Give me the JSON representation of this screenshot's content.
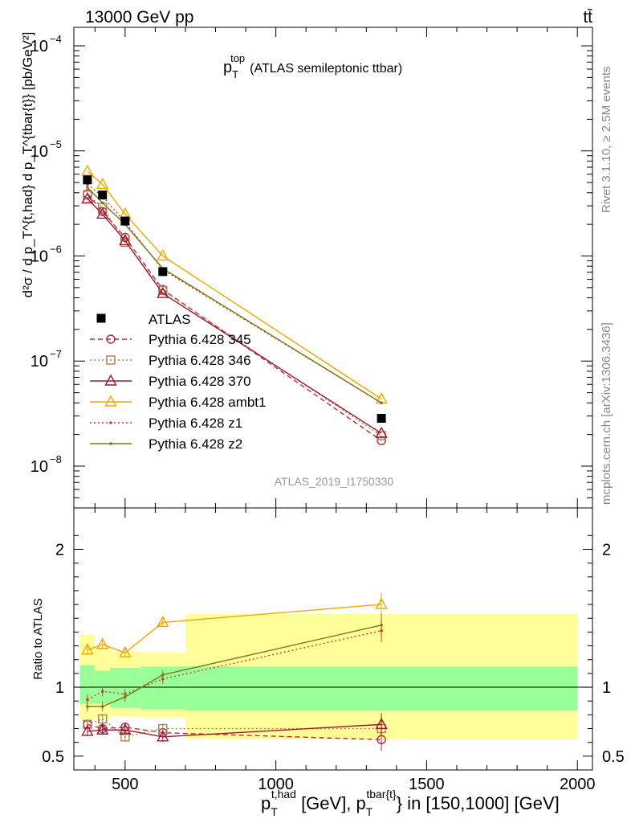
{
  "header": {
    "left": "13000 GeV pp",
    "right": "tt̄"
  },
  "side_labels": {
    "rivet": "Rivet 3.1.10, ≥ 2.5M events",
    "mcplots": "mcplots.cern.ch [arXiv:1306.3436]"
  },
  "plot_title": {
    "main": "p",
    "sub": "T",
    "sup": "top",
    "rest": "(ATLAS semileptonic ttbar)"
  },
  "analysis_id": "ATLAS_2019_I1750330",
  "ylabel_main": "d²σ / d p_T^{t,had} d p_T^{tbar{t}} [pb/GeV²]",
  "ylabel_ratio": "Ratio to ATLAS",
  "xlabel": "p_T^{t,had} [GeV], p_T^{tbar{t}} in [150,1000] [GeV]",
  "xlabel_parts": {
    "p1": "p",
    "sub1": "T",
    "sup1": "t,had",
    "mid": " [GeV], p",
    "sub2": "T",
    "sup2": "tbar{t}",
    "end": "} in [150,1000] [GeV]"
  },
  "colors": {
    "data": "#000000",
    "p345": "#b22a46",
    "p346": "#a8834e",
    "p370": "#9b1a30",
    "ambt1": "#f0a800",
    "z1": "#d43a2a",
    "z2": "#7a7a1a",
    "band_inner": "#99ff99",
    "band_outer": "#ffff99"
  },
  "chart_data": {
    "type": "line",
    "x_range": [
      330,
      2050
    ],
    "y_range_main": [
      4e-09,
      0.00015
    ],
    "y_scale_main": "log",
    "y_range_ratio": [
      0.4,
      2.3
    ],
    "x_ticks": [
      500,
      1000,
      1500,
      2000
    ],
    "y_ticks_main": [
      "10^{-8}",
      "10^{-7}",
      "10^{-6}",
      "10^{-5}",
      "10^{-4}"
    ],
    "y_ticks_ratio": [
      0.5,
      1,
      2
    ],
    "legend_placement": "middle-left",
    "x": [
      375,
      425,
      500,
      625,
      1350
    ],
    "data": {
      "name": "ATLAS",
      "values": [
        5.3e-06,
        3.8e-06,
        2.15e-06,
        7.1e-07,
        2.85e-08
      ],
      "band_edges": [
        350,
        400,
        450,
        550,
        700,
        2000
      ],
      "band_inner": [
        [
          0.88,
          1.16
        ],
        [
          0.88,
          1.12
        ],
        [
          0.85,
          1.14
        ],
        [
          0.84,
          1.15
        ],
        [
          0.83,
          1.15
        ]
      ],
      "band_outer": [
        [
          0.76,
          1.38
        ],
        [
          0.77,
          1.29
        ],
        [
          0.79,
          1.26
        ],
        [
          0.78,
          1.25
        ],
        [
          0.62,
          1.53
        ]
      ]
    },
    "series": [
      {
        "name": "Pythia 6.428 345",
        "values": [
          3.9e-06,
          2.65e-06,
          1.5e-06,
          4.8e-07,
          1.75e-08
        ],
        "ratio": [
          0.73,
          0.7,
          0.71,
          0.67,
          0.62
        ],
        "style": "dashed",
        "marker": "circle"
      },
      {
        "name": "Pythia 6.428 346",
        "values": [
          3.8e-06,
          2.9e-06,
          1.35e-06,
          4.7e-07,
          1.95e-08
        ],
        "ratio": [
          0.73,
          0.77,
          0.64,
          0.7,
          0.7
        ],
        "style": "dotted",
        "marker": "square"
      },
      {
        "name": "Pythia 6.428 370",
        "values": [
          3.5e-06,
          2.5e-06,
          1.4e-06,
          4.4e-07,
          2.05e-08
        ],
        "ratio": [
          0.68,
          0.69,
          0.69,
          0.64,
          0.73
        ],
        "style": "solid",
        "marker": "triangle"
      },
      {
        "name": "Pythia 6.428 ambt1",
        "values": [
          6.4e-06,
          4.8e-06,
          2.5e-06,
          1e-06,
          4.35e-08
        ],
        "ratio": [
          1.27,
          1.31,
          1.25,
          1.47,
          1.6
        ],
        "style": "solid",
        "marker": "triangle"
      },
      {
        "name": "Pythia 6.428 z1",
        "values": [
          4.8e-06,
          3.7e-06,
          2.1e-06,
          7.4e-07,
          4e-08
        ],
        "ratio": [
          0.91,
          0.97,
          0.95,
          1.06,
          1.41
        ],
        "style": "dotted",
        "marker": "dot"
      },
      {
        "name": "Pythia 6.428 z2",
        "values": [
          4.5e-06,
          3.2e-06,
          2e-06,
          7.6e-07,
          4e-08
        ],
        "ratio": [
          0.86,
          0.86,
          0.93,
          1.09,
          1.45
        ],
        "style": "solid",
        "marker": "dot"
      }
    ]
  }
}
